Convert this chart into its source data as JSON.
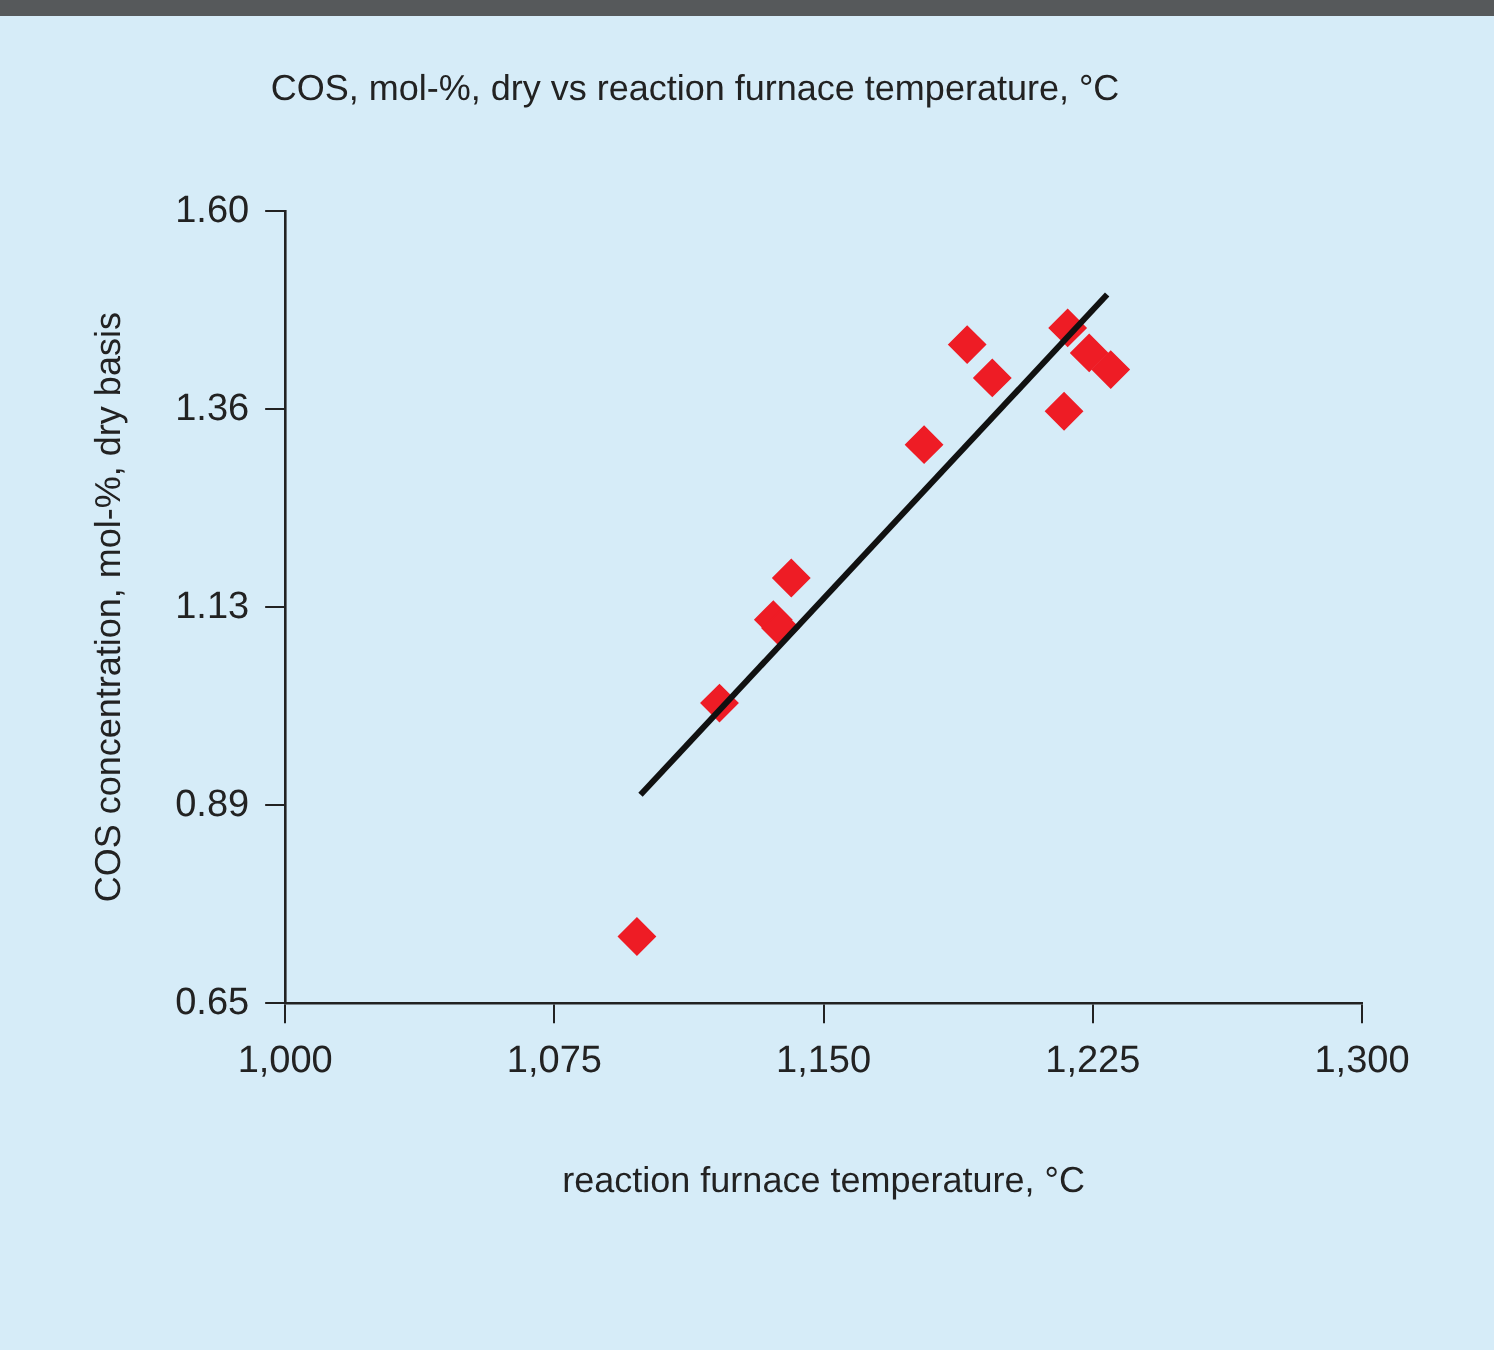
{
  "chart_data": {
    "type": "scatter",
    "title": "COS, mol-%, dry vs reaction furnace temperature, °C",
    "xlabel": "reaction furnace temperature, °C",
    "ylabel": "COS concentration, mol-%, dry basis",
    "xlim": [
      1000,
      1300
    ],
    "xticks": [
      {
        "value": 1000,
        "label": "1,000"
      },
      {
        "value": 1075,
        "label": "1,075"
      },
      {
        "value": 1150,
        "label": "1,150"
      },
      {
        "value": 1225,
        "label": "1,225"
      },
      {
        "value": 1300,
        "label": "1,300"
      }
    ],
    "ylim": [
      0.65,
      1.6
    ],
    "yticks": [
      {
        "value": 0.65,
        "label": "0.65"
      },
      {
        "value": 0.8875,
        "label": "0.89"
      },
      {
        "value": 1.125,
        "label": "1.13"
      },
      {
        "value": 1.3625,
        "label": "1.36"
      },
      {
        "value": 1.6,
        "label": "1.60"
      }
    ],
    "grid": false,
    "legend": false,
    "series": [
      {
        "marker": "diamond",
        "color": "#ee1c25",
        "x": [
          1098,
          1121,
          1136,
          1138,
          1141,
          1178,
          1190,
          1197,
          1217,
          1218,
          1224,
          1230
        ],
        "values": [
          0.73,
          1.01,
          1.11,
          1.1,
          1.16,
          1.32,
          1.44,
          1.4,
          1.36,
          1.46,
          1.43,
          1.41
        ]
      },
      {
        "type": "line",
        "marker": "none",
        "color": "#111111",
        "x": [
          1099,
          1229
        ],
        "values": [
          0.9,
          1.5
        ]
      }
    ]
  }
}
